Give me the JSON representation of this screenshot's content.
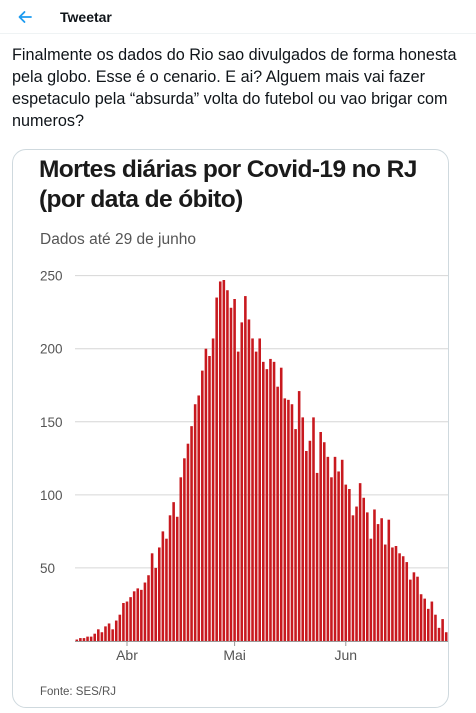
{
  "header": {
    "back_icon": "arrow-left-icon",
    "title": "Tweetar"
  },
  "tweet": {
    "text": "Finalmente os dados do Rio sao divulgados de forma honesta pela globo. Esse é o cenario. E ai? Alguem mais vai fazer espetaculo pela “absurda” volta do futebol ou vao brigar com numeros?"
  },
  "colors": {
    "accent": "#1d9bf0",
    "bar": "#c8191f"
  },
  "chart_data": {
    "type": "bar",
    "title": "Mortes diárias por Covid-19 no RJ (por data de óbito)",
    "subtitle": "Dados até 29 de junho",
    "source": "Fonte: SES/RJ",
    "xlabel": "",
    "ylabel": "",
    "ylim": [
      0,
      260
    ],
    "grid": true,
    "y_ticks": [
      250,
      200,
      150,
      100,
      50
    ],
    "x_tick_labels": [
      {
        "label": "Abr",
        "index": 14
      },
      {
        "label": "Mai",
        "index": 44
      },
      {
        "label": "Jun",
        "index": 75
      }
    ],
    "values": [
      1,
      2,
      2,
      3,
      3,
      5,
      8,
      6,
      10,
      12,
      8,
      14,
      18,
      26,
      27,
      30,
      34,
      36,
      35,
      40,
      45,
      60,
      50,
      64,
      75,
      70,
      86,
      95,
      85,
      112,
      125,
      135,
      147,
      162,
      168,
      185,
      200,
      195,
      207,
      235,
      246,
      247,
      240,
      228,
      234,
      198,
      218,
      236,
      220,
      207,
      198,
      207,
      191,
      186,
      193,
      191,
      174,
      187,
      166,
      165,
      162,
      145,
      171,
      153,
      130,
      137,
      153,
      115,
      143,
      136,
      126,
      112,
      126,
      116,
      124,
      107,
      104,
      86,
      92,
      108,
      98,
      88,
      70,
      90,
      80,
      84,
      66,
      83,
      64,
      65,
      60,
      58,
      54,
      42,
      47,
      44,
      32,
      29,
      22,
      27,
      18,
      9,
      15,
      6
    ]
  }
}
